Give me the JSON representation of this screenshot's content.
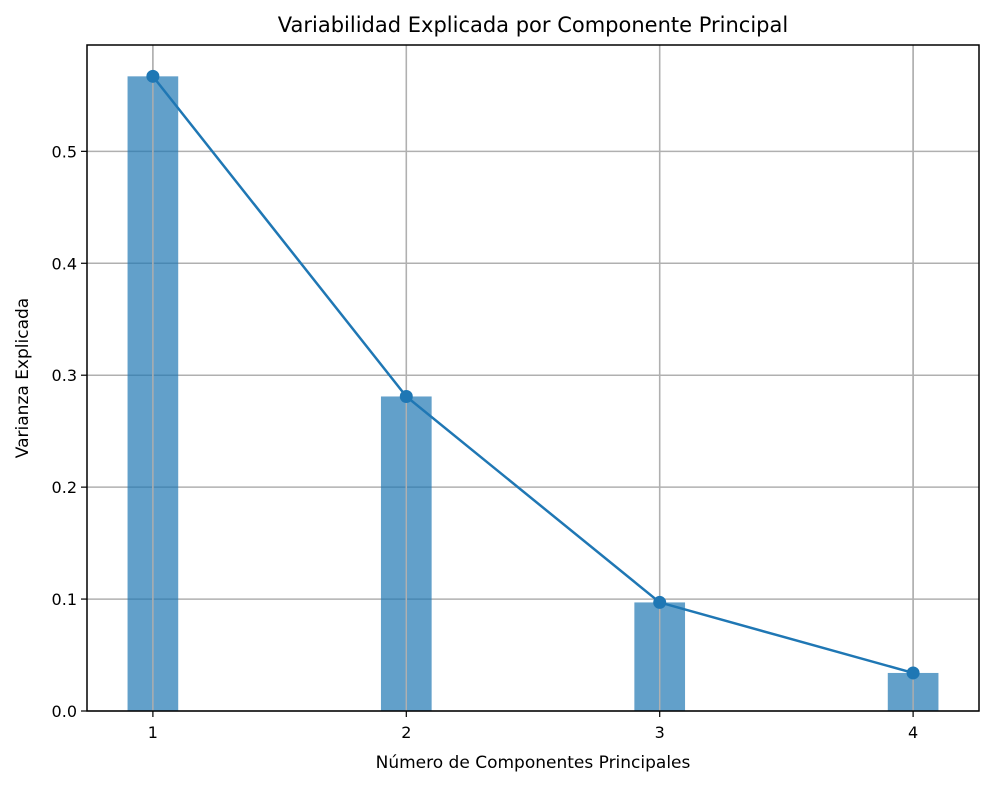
{
  "chart_data": {
    "type": "bar",
    "title": "Variabilidad Explicada por Componente Principal",
    "xlabel": "Número de Componentes Principales",
    "ylabel": "Varianza Explicada",
    "categories": [
      "1",
      "2",
      "3",
      "4"
    ],
    "x": [
      1,
      2,
      3,
      4
    ],
    "values": [
      0.567,
      0.281,
      0.097,
      0.034
    ],
    "line_overlay": true,
    "yticks": [
      "0.0",
      "0.1",
      "0.2",
      "0.3",
      "0.4",
      "0.5"
    ],
    "ytick_values": [
      0,
      0.1,
      0.2,
      0.3,
      0.4,
      0.5
    ],
    "xlim": [
      0.74,
      4.26
    ],
    "ylim": [
      0,
      0.595
    ],
    "grid": true,
    "colors": {
      "bar": "#1f77b4",
      "bar_opacity": 0.7,
      "line": "#1f77b4"
    }
  }
}
